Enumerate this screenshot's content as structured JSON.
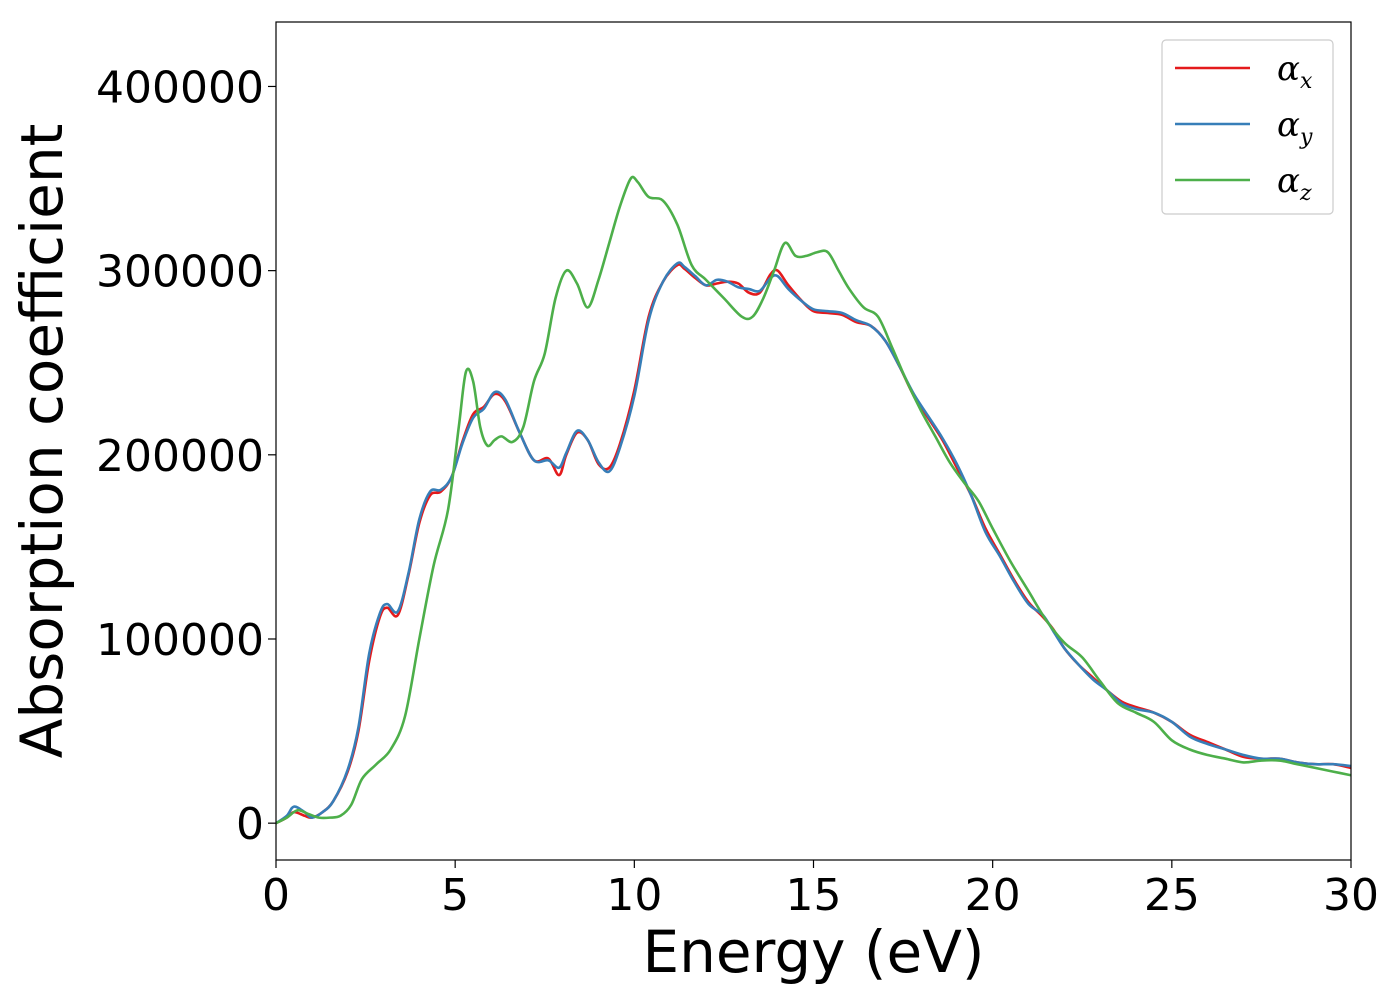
{
  "chart_data": {
    "type": "line",
    "title": "",
    "xlabel": "Energy (eV)",
    "ylabel": "Absorption coefficient",
    "xlim": [
      0,
      30
    ],
    "ylim": [
      -20000,
      435000
    ],
    "x_ticks": [
      "0",
      "5",
      "10",
      "15",
      "20",
      "25",
      "30"
    ],
    "y_ticks": [
      "0",
      "100000",
      "200000",
      "300000",
      "400000"
    ],
    "x_tick_values": [
      0,
      5,
      10,
      15,
      20,
      25,
      30
    ],
    "y_tick_values": [
      0,
      100000,
      200000,
      300000,
      400000
    ],
    "grid": false,
    "legend_position": "top-right",
    "series": [
      {
        "name": "α_x",
        "symbol": "α",
        "subscript": "x",
        "color": "#e41a1c",
        "x": [
          0,
          0.3,
          0.5,
          0.8,
          1.0,
          1.3,
          1.6,
          2.0,
          2.3,
          2.6,
          2.9,
          3.1,
          3.4,
          3.7,
          4.0,
          4.3,
          4.6,
          4.9,
          5.2,
          5.5,
          5.8,
          6.1,
          6.4,
          6.8,
          7.2,
          7.6,
          7.9,
          8.1,
          8.4,
          8.7,
          9.0,
          9.3,
          9.6,
          10.0,
          10.4,
          10.8,
          11.2,
          11.4,
          11.7,
          12.0,
          12.3,
          12.6,
          12.9,
          13.2,
          13.5,
          13.8,
          14.0,
          14.3,
          14.7,
          15.0,
          15.4,
          15.8,
          16.2,
          16.6,
          17.0,
          17.4,
          17.8,
          18.2,
          18.6,
          19.0,
          19.4,
          19.8,
          20.2,
          20.6,
          21.0,
          21.4,
          21.7,
          22.0,
          22.4,
          22.8,
          23.2,
          23.6,
          24.0,
          24.5,
          25.0,
          25.5,
          26.0,
          26.5,
          27.0,
          27.5,
          28.0,
          28.5,
          29.0,
          29.5,
          30.0
        ],
        "values": [
          0,
          3000,
          6000,
          4000,
          3000,
          6000,
          12000,
          28000,
          50000,
          88000,
          112000,
          117000,
          113000,
          135000,
          163000,
          178000,
          180000,
          188000,
          207000,
          222000,
          226000,
          233000,
          229000,
          212000,
          197000,
          198000,
          189000,
          200000,
          212000,
          208000,
          195000,
          193000,
          206000,
          235000,
          275000,
          294000,
          303000,
          301000,
          296000,
          292000,
          293000,
          294000,
          293000,
          288000,
          288000,
          298000,
          300000,
          292000,
          283000,
          278000,
          277000,
          276000,
          272000,
          270000,
          262000,
          248000,
          232000,
          220000,
          208000,
          193000,
          178000,
          160000,
          146000,
          132000,
          120000,
          112000,
          105000,
          95000,
          86000,
          79000,
          72000,
          66000,
          63000,
          60000,
          55000,
          48000,
          44000,
          40000,
          36000,
          35000,
          35000,
          33000,
          32000,
          32000,
          30000
        ]
      },
      {
        "name": "α_y",
        "symbol": "α",
        "subscript": "y",
        "color": "#377eb8",
        "x": [
          0,
          0.3,
          0.5,
          0.8,
          1.0,
          1.3,
          1.6,
          2.0,
          2.3,
          2.6,
          2.9,
          3.1,
          3.4,
          3.7,
          4.0,
          4.3,
          4.6,
          4.9,
          5.2,
          5.5,
          5.8,
          6.1,
          6.4,
          6.8,
          7.2,
          7.6,
          7.9,
          8.1,
          8.4,
          8.7,
          9.0,
          9.3,
          9.6,
          10.0,
          10.4,
          10.8,
          11.2,
          11.4,
          11.7,
          12.0,
          12.3,
          12.6,
          12.9,
          13.2,
          13.5,
          13.8,
          14.0,
          14.3,
          14.7,
          15.0,
          15.4,
          15.8,
          16.2,
          16.6,
          17.0,
          17.4,
          17.8,
          18.2,
          18.6,
          19.0,
          19.4,
          19.8,
          20.2,
          20.6,
          21.0,
          21.4,
          21.7,
          22.0,
          22.4,
          22.8,
          23.2,
          23.6,
          24.0,
          24.5,
          25.0,
          25.5,
          26.0,
          26.5,
          27.0,
          27.5,
          28.0,
          28.5,
          29.0,
          29.5,
          30.0
        ],
        "values": [
          0,
          4000,
          9000,
          6000,
          3000,
          6000,
          12000,
          29000,
          52000,
          92000,
          114000,
          119000,
          115000,
          136000,
          165000,
          180000,
          181000,
          188000,
          206000,
          220000,
          225000,
          234000,
          230000,
          212000,
          197000,
          197000,
          193000,
          201000,
          213000,
          208000,
          196000,
          191000,
          204000,
          232000,
          273000,
          294000,
          304000,
          302000,
          297000,
          292000,
          295000,
          294000,
          291000,
          290000,
          289000,
          296000,
          297000,
          290000,
          283000,
          279000,
          278000,
          277000,
          273000,
          270000,
          262000,
          248000,
          233000,
          221000,
          209000,
          195000,
          178000,
          158000,
          145000,
          131000,
          119000,
          113000,
          104000,
          95000,
          86000,
          78000,
          72000,
          65000,
          62000,
          60000,
          55000,
          47000,
          43000,
          40000,
          37000,
          35000,
          35000,
          33000,
          32000,
          32000,
          31000
        ]
      },
      {
        "name": "α_z",
        "symbol": "α",
        "subscript": "z",
        "color": "#4daf4a",
        "x": [
          0,
          0.3,
          0.6,
          0.9,
          1.2,
          1.5,
          1.8,
          2.1,
          2.4,
          2.8,
          3.2,
          3.6,
          4.0,
          4.4,
          4.8,
          5.1,
          5.3,
          5.5,
          5.7,
          5.9,
          6.1,
          6.3,
          6.6,
          6.9,
          7.2,
          7.5,
          7.8,
          8.1,
          8.4,
          8.7,
          9.0,
          9.3,
          9.6,
          9.9,
          10.1,
          10.4,
          10.8,
          11.2,
          11.6,
          12.0,
          12.5,
          13.0,
          13.3,
          13.6,
          13.9,
          14.2,
          14.5,
          14.8,
          15.1,
          15.4,
          15.7,
          16.0,
          16.4,
          16.8,
          17.2,
          17.6,
          18.0,
          18.4,
          18.8,
          19.2,
          19.6,
          20.0,
          20.5,
          21.0,
          21.5,
          22.0,
          22.5,
          23.0,
          23.5,
          24.0,
          24.5,
          25.0,
          25.5,
          26.0,
          26.5,
          27.0,
          27.5,
          28.0,
          28.5,
          29.0,
          29.5,
          30.0
        ],
        "values": [
          0,
          3000,
          7000,
          5000,
          3000,
          3000,
          4000,
          10000,
          24000,
          32000,
          40000,
          58000,
          100000,
          140000,
          170000,
          215000,
          245000,
          240000,
          215000,
          205000,
          208000,
          210000,
          207000,
          215000,
          240000,
          255000,
          285000,
          300000,
          293000,
          280000,
          295000,
          315000,
          335000,
          350000,
          348000,
          340000,
          338000,
          325000,
          303000,
          295000,
          285000,
          275000,
          275000,
          285000,
          300000,
          315000,
          308000,
          308000,
          310000,
          310000,
          300000,
          290000,
          280000,
          275000,
          258000,
          240000,
          224000,
          210000,
          196000,
          185000,
          175000,
          160000,
          142000,
          126000,
          110000,
          98000,
          90000,
          77000,
          65000,
          60000,
          55000,
          45000,
          40000,
          37000,
          35000,
          33000,
          34000,
          34000,
          32000,
          30000,
          28000,
          26000
        ]
      }
    ]
  }
}
